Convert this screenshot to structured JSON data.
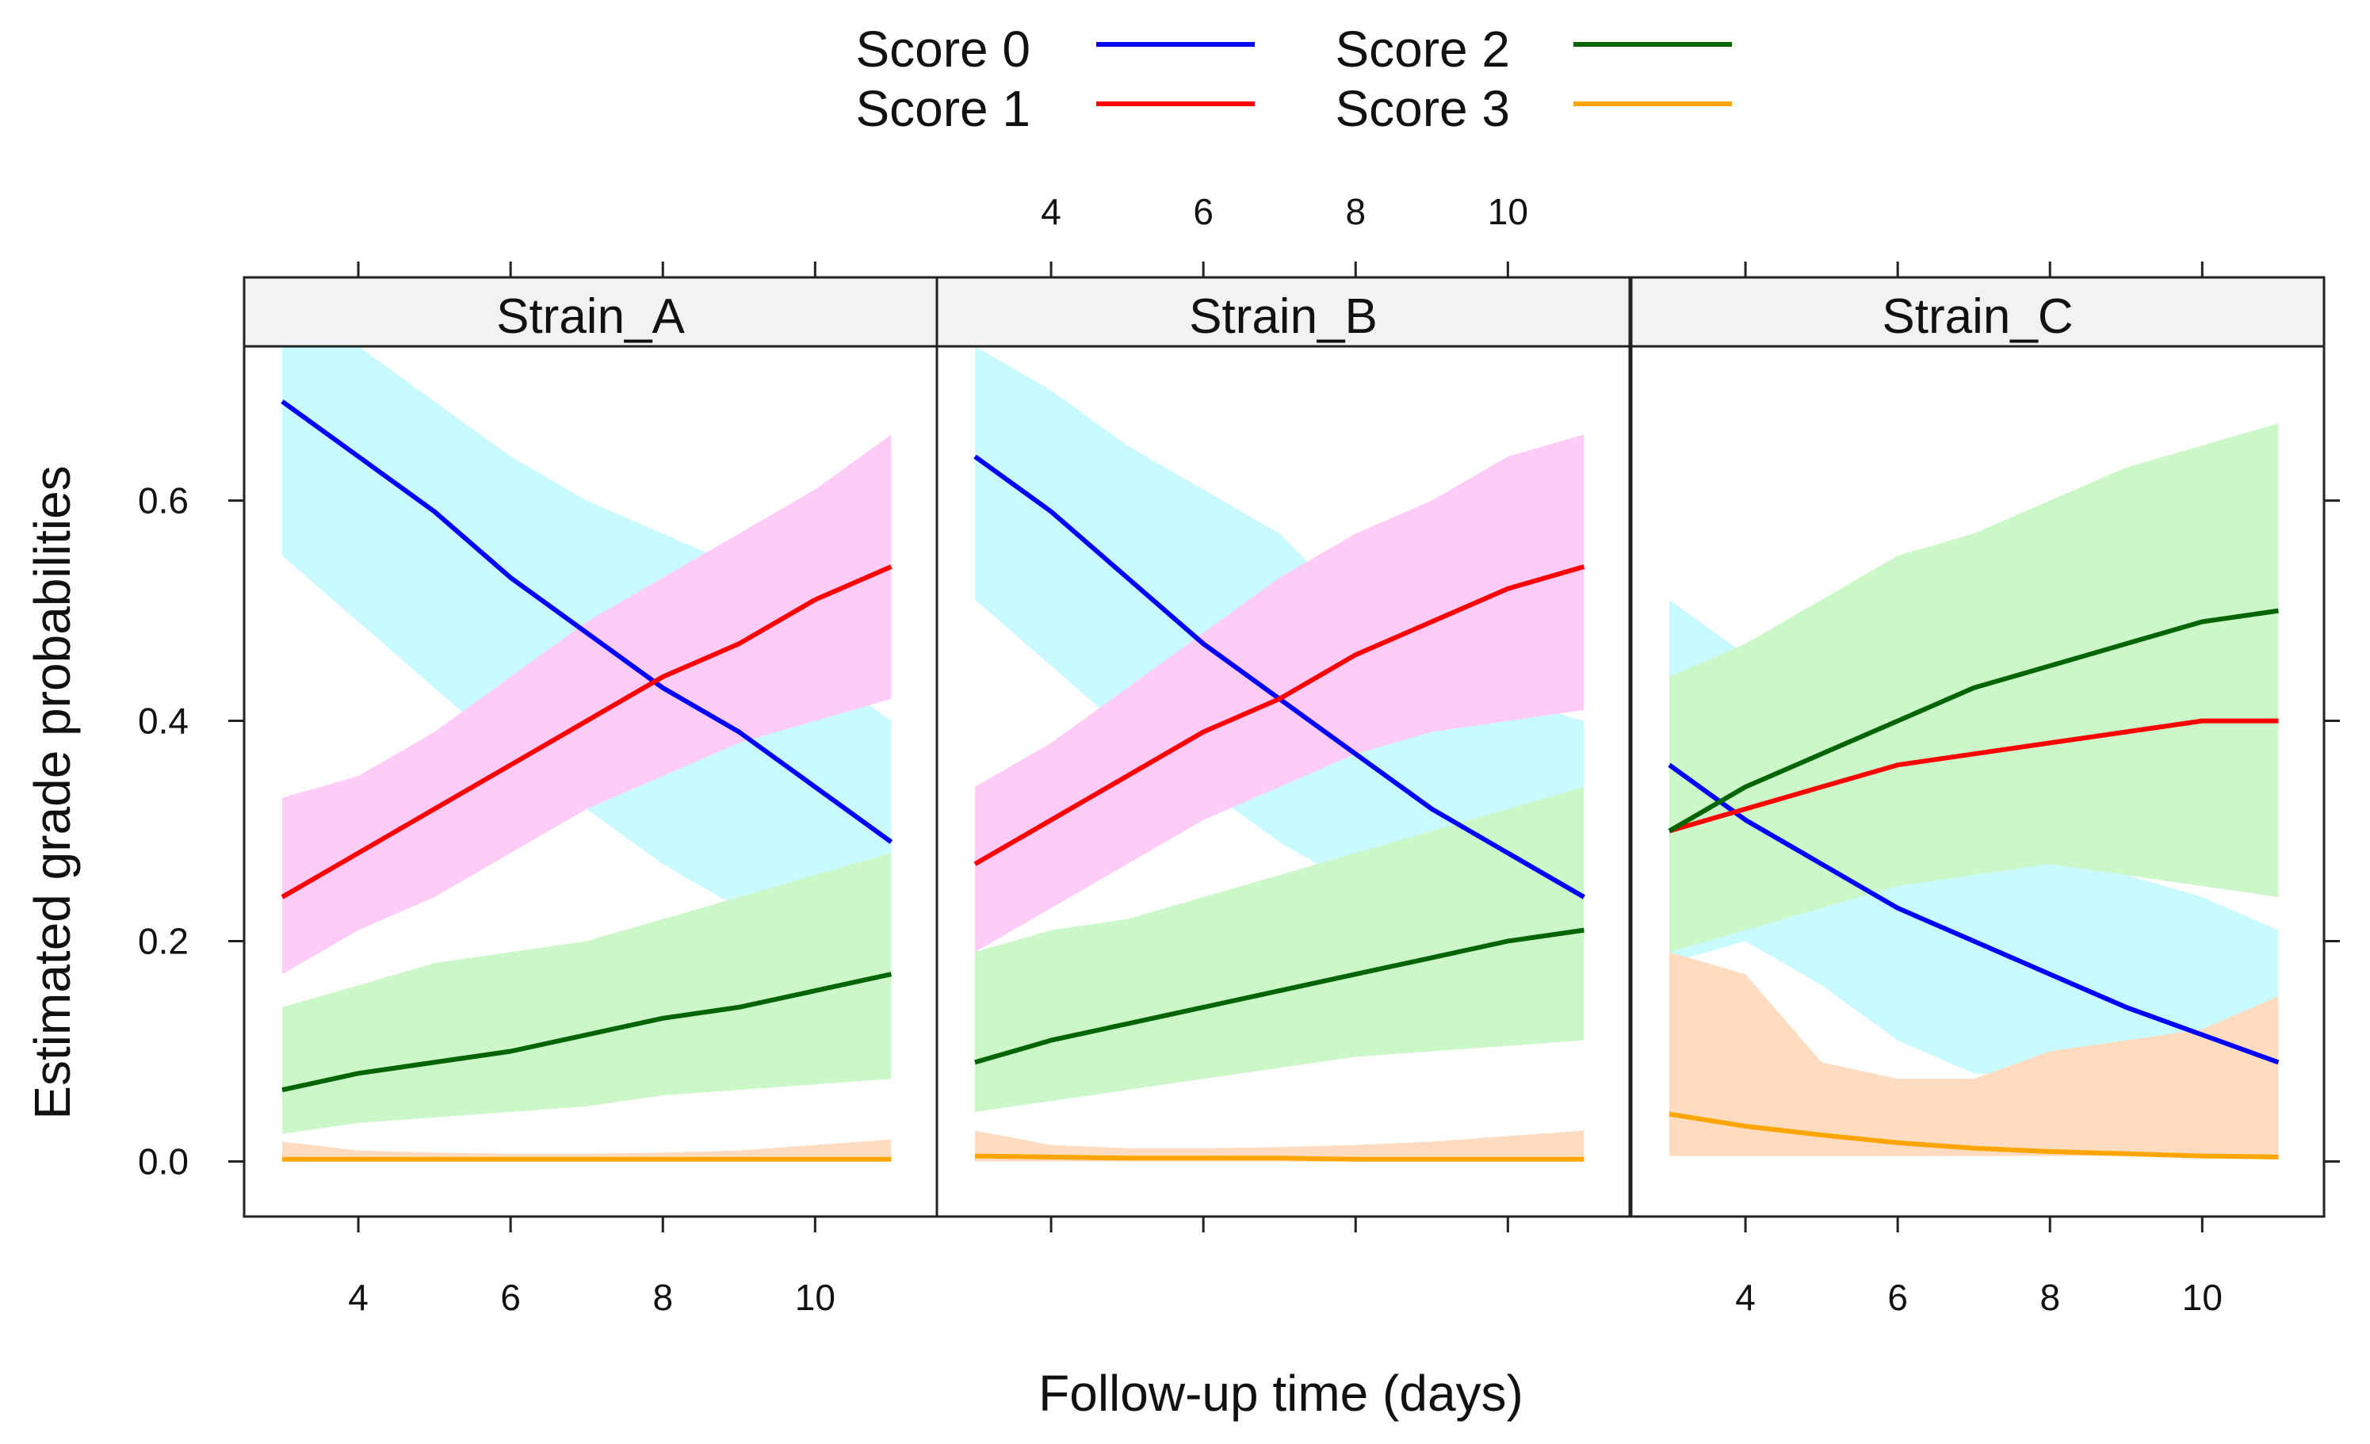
{
  "chart_data": {
    "type": "line",
    "xlabel": "Follow-up time (days)",
    "ylabel": "Estimated grade probabilities",
    "xlim": [
      2.5,
      11.6
    ],
    "ylim": [
      -0.05,
      0.74
    ],
    "x_ticks": [
      4,
      6,
      8,
      10
    ],
    "y_ticks": [
      0.0,
      0.2,
      0.4,
      0.6
    ],
    "y_tick_labels": [
      "0.0",
      "0.2",
      "0.4",
      "0.6"
    ],
    "x_tick_labels": [
      "4",
      "6",
      "8",
      "10"
    ],
    "legend": {
      "placement": "top",
      "entries": [
        {
          "label": "Score 0",
          "color": "#0000ff"
        },
        {
          "label": "Score 1",
          "color": "#ff0000"
        },
        {
          "label": "Score 2",
          "color": "#006400"
        },
        {
          "label": "Score 3",
          "color": "#ffa500"
        }
      ]
    },
    "band_colors": [
      "#c8faff",
      "#ffccf7",
      "#ccf7c8",
      "#ffdcc0"
    ],
    "x": [
      3,
      4,
      5,
      6,
      7,
      8,
      9,
      10,
      11
    ],
    "panels": [
      {
        "title": "Strain_A",
        "series": [
          {
            "name": "Score 0",
            "values": [
              0.69,
              0.64,
              0.59,
              0.53,
              0.48,
              0.43,
              0.39,
              0.34,
              0.29
            ],
            "lower": [
              0.55,
              0.49,
              0.43,
              0.37,
              0.32,
              0.27,
              0.23,
              0.2,
              0.18
            ],
            "upper": [
              0.74,
              0.74,
              0.69,
              0.64,
              0.6,
              0.57,
              0.54,
              0.45,
              0.4
            ]
          },
          {
            "name": "Score 1",
            "values": [
              0.24,
              0.28,
              0.32,
              0.36,
              0.4,
              0.44,
              0.47,
              0.51,
              0.54
            ],
            "lower": [
              0.17,
              0.21,
              0.24,
              0.28,
              0.32,
              0.35,
              0.38,
              0.4,
              0.42
            ],
            "upper": [
              0.33,
              0.35,
              0.39,
              0.44,
              0.49,
              0.53,
              0.57,
              0.61,
              0.66
            ]
          },
          {
            "name": "Score 2",
            "values": [
              0.065,
              0.08,
              0.09,
              0.1,
              0.115,
              0.13,
              0.14,
              0.155,
              0.17
            ],
            "lower": [
              0.025,
              0.035,
              0.04,
              0.045,
              0.05,
              0.06,
              0.065,
              0.07,
              0.075
            ],
            "upper": [
              0.14,
              0.16,
              0.18,
              0.19,
              0.2,
              0.22,
              0.24,
              0.26,
              0.28
            ]
          },
          {
            "name": "Score 3",
            "values": [
              0.002,
              0.002,
              0.002,
              0.002,
              0.002,
              0.002,
              0.002,
              0.002,
              0.002
            ],
            "lower": [
              0,
              0,
              0,
              0,
              0,
              0,
              0,
              0,
              0
            ],
            "upper": [
              0.018,
              0.01,
              0.008,
              0.007,
              0.007,
              0.008,
              0.01,
              0.015,
              0.02
            ]
          }
        ]
      },
      {
        "title": "Strain_B",
        "series": [
          {
            "name": "Score 0",
            "values": [
              0.64,
              0.59,
              0.53,
              0.47,
              0.42,
              0.37,
              0.32,
              0.28,
              0.24
            ],
            "lower": [
              0.51,
              0.45,
              0.39,
              0.34,
              0.29,
              0.25,
              0.23,
              0.22,
              0.21
            ],
            "upper": [
              0.74,
              0.7,
              0.65,
              0.61,
              0.57,
              0.5,
              0.46,
              0.42,
              0.4
            ]
          },
          {
            "name": "Score 1",
            "values": [
              0.27,
              0.31,
              0.35,
              0.39,
              0.42,
              0.46,
              0.49,
              0.52,
              0.54
            ],
            "lower": [
              0.19,
              0.23,
              0.27,
              0.31,
              0.34,
              0.37,
              0.39,
              0.4,
              0.41
            ],
            "upper": [
              0.34,
              0.38,
              0.43,
              0.48,
              0.53,
              0.57,
              0.6,
              0.64,
              0.66
            ]
          },
          {
            "name": "Score 2",
            "values": [
              0.09,
              0.11,
              0.125,
              0.14,
              0.155,
              0.17,
              0.185,
              0.2,
              0.21
            ],
            "lower": [
              0.045,
              0.055,
              0.065,
              0.075,
              0.085,
              0.095,
              0.1,
              0.105,
              0.11
            ],
            "upper": [
              0.19,
              0.21,
              0.22,
              0.24,
              0.26,
              0.28,
              0.3,
              0.32,
              0.34
            ]
          },
          {
            "name": "Score 3",
            "values": [
              0.005,
              0.004,
              0.003,
              0.003,
              0.003,
              0.002,
              0.002,
              0.002,
              0.002
            ],
            "lower": [
              0,
              0,
              0,
              0,
              0,
              0,
              0,
              0,
              0
            ],
            "upper": [
              0.028,
              0.015,
              0.012,
              0.012,
              0.013,
              0.015,
              0.018,
              0.023,
              0.028
            ]
          }
        ]
      },
      {
        "title": "Strain_C",
        "series": [
          {
            "name": "Score 0",
            "values": [
              0.36,
              0.31,
              0.27,
              0.23,
              0.2,
              0.17,
              0.14,
              0.115,
              0.09
            ],
            "lower": [
              0.18,
              0.2,
              0.16,
              0.11,
              0.08,
              0.075,
              0.08,
              0.09,
              0.1
            ],
            "upper": [
              0.51,
              0.46,
              0.39,
              0.33,
              0.29,
              0.28,
              0.26,
              0.24,
              0.21
            ]
          },
          {
            "name": "Score 1",
            "values": [
              0.3,
              0.32,
              0.34,
              0.36,
              0.37,
              0.38,
              0.39,
              0.4,
              0.4
            ],
            "lower": [
              0.24,
              0.25,
              0.26,
              0.27,
              0.27,
              0.27,
              0.26,
              0.25,
              0.24
            ],
            "upper": [
              0.34,
              0.37,
              0.4,
              0.43,
              0.46,
              0.5,
              0.54,
              0.58,
              0.62
            ]
          },
          {
            "name": "Score 2",
            "values": [
              0.3,
              0.34,
              0.37,
              0.4,
              0.43,
              0.45,
              0.47,
              0.49,
              0.5
            ],
            "lower": [
              0.19,
              0.21,
              0.23,
              0.25,
              0.26,
              0.27,
              0.26,
              0.25,
              0.24
            ],
            "upper": [
              0.44,
              0.47,
              0.51,
              0.55,
              0.57,
              0.6,
              0.63,
              0.65,
              0.67
            ]
          },
          {
            "name": "Score 3",
            "values": [
              0.043,
              0.032,
              0.024,
              0.017,
              0.012,
              0.009,
              0.007,
              0.005,
              0.004
            ],
            "lower": [
              0.005,
              0.005,
              0.005,
              0.005,
              0.005,
              0.005,
              0.005,
              0.005,
              0.005
            ],
            "upper": [
              0.19,
              0.17,
              0.09,
              0.075,
              0.075,
              0.1,
              0.11,
              0.12,
              0.15
            ]
          }
        ]
      }
    ]
  }
}
